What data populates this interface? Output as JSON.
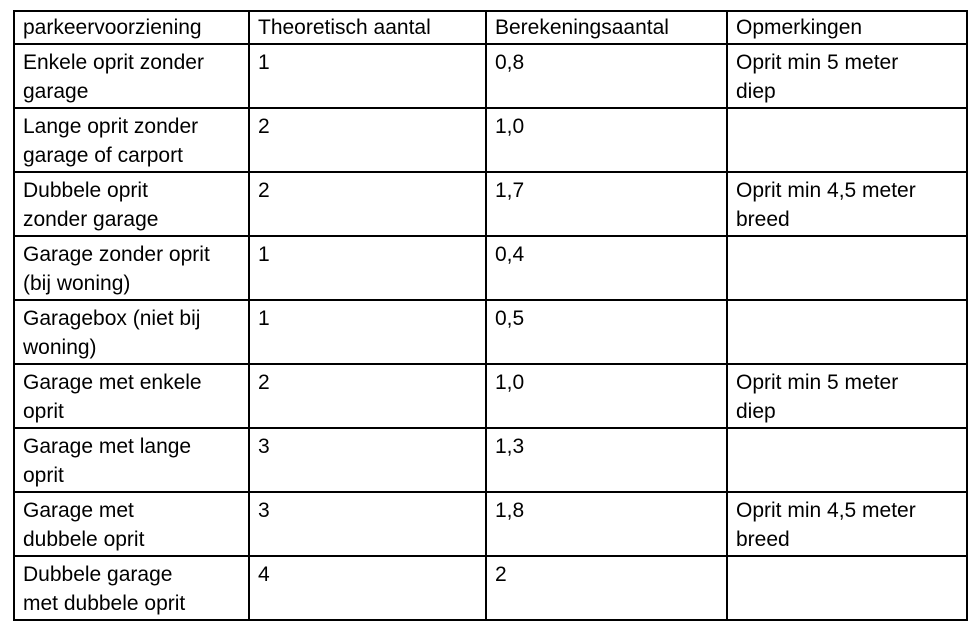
{
  "document": {
    "background_color": "#ffffff",
    "border_color": "#000000",
    "text_color": "#000000"
  },
  "table": {
    "columns": [
      "parkeervoorziening",
      "Theoretisch aantal",
      "Berekeningsaantal",
      "Opmerkingen"
    ],
    "rows": [
      {
        "voorziening": "Enkele oprit zonder\ngarage",
        "theoretisch": "1",
        "berekening": "0,8",
        "opmerkingen": "Oprit min 5 meter\ndiep"
      },
      {
        "voorziening": "Lange oprit zonder\ngarage of carport",
        "theoretisch": "2",
        "berekening": "1,0",
        "opmerkingen": ""
      },
      {
        "voorziening": "Dubbele oprit\nzonder garage",
        "theoretisch": "2",
        "berekening": "1,7",
        "opmerkingen": "Oprit min 4,5 meter\nbreed"
      },
      {
        "voorziening": "Garage zonder oprit\n(bij woning)",
        "theoretisch": "1",
        "berekening": "0,4",
        "opmerkingen": ""
      },
      {
        "voorziening": "Garagebox (niet bij\nwoning)",
        "theoretisch": "1",
        "berekening": "0,5",
        "opmerkingen": ""
      },
      {
        "voorziening": "Garage met enkele\noprit",
        "theoretisch": "2",
        "berekening": "1,0",
        "opmerkingen": "Oprit min 5 meter\ndiep"
      },
      {
        "voorziening": "Garage met lange\noprit",
        "theoretisch": "3",
        "berekening": "1,3",
        "opmerkingen": ""
      },
      {
        "voorziening": "Garage met\ndubbele oprit",
        "theoretisch": "3",
        "berekening": "1,8",
        "opmerkingen": "Oprit min 4,5 meter\nbreed"
      },
      {
        "voorziening": "Dubbele garage\nmet dubbele oprit",
        "theoretisch": "4",
        "berekening": "2",
        "opmerkingen": ""
      }
    ]
  }
}
